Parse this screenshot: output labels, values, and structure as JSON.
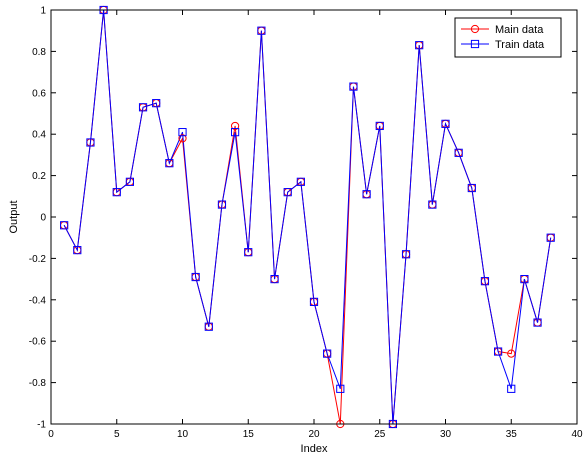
{
  "chart_data": {
    "type": "line",
    "title": "",
    "xlabel": "Index",
    "ylabel": "Output",
    "xlim": [
      0,
      40
    ],
    "ylim": [
      -1,
      1
    ],
    "xticks": [
      0,
      5,
      10,
      15,
      20,
      25,
      30,
      35,
      40
    ],
    "yticks": [
      -1,
      -0.8,
      -0.6,
      -0.4,
      -0.2,
      0,
      0.2,
      0.4,
      0.6,
      0.8,
      1
    ],
    "grid": false,
    "legend_position": "top-right",
    "x": [
      1,
      2,
      3,
      4,
      5,
      6,
      7,
      8,
      9,
      10,
      11,
      12,
      13,
      14,
      15,
      16,
      17,
      18,
      19,
      20,
      21,
      22,
      23,
      24,
      25,
      26,
      27,
      28,
      29,
      30,
      31,
      32,
      33,
      34,
      35,
      36,
      37,
      38
    ],
    "series": [
      {
        "name": "Main data",
        "color": "#ff0000",
        "marker": "circle",
        "values": [
          -0.04,
          -0.16,
          0.36,
          1.0,
          0.12,
          0.17,
          0.53,
          0.55,
          0.26,
          0.38,
          -0.29,
          -0.53,
          0.06,
          0.44,
          -0.17,
          0.9,
          -0.3,
          0.12,
          0.17,
          -0.41,
          -0.66,
          -1.0,
          0.63,
          0.11,
          0.44,
          -1.0,
          -0.18,
          0.83,
          0.06,
          0.45,
          0.31,
          0.14,
          -0.31,
          -0.65,
          -0.66,
          -0.3,
          -0.51,
          -0.1
        ]
      },
      {
        "name": "Train data",
        "color": "#0000ff",
        "marker": "square",
        "values": [
          -0.04,
          -0.16,
          0.36,
          1.0,
          0.12,
          0.17,
          0.53,
          0.55,
          0.26,
          0.41,
          -0.29,
          -0.53,
          0.06,
          0.41,
          -0.17,
          0.9,
          -0.3,
          0.12,
          0.17,
          -0.41,
          -0.66,
          -0.83,
          0.63,
          0.11,
          0.44,
          -1.0,
          -0.18,
          0.83,
          0.06,
          0.45,
          0.31,
          0.14,
          -0.31,
          -0.65,
          -0.83,
          -0.3,
          -0.51,
          -0.1
        ]
      }
    ]
  }
}
